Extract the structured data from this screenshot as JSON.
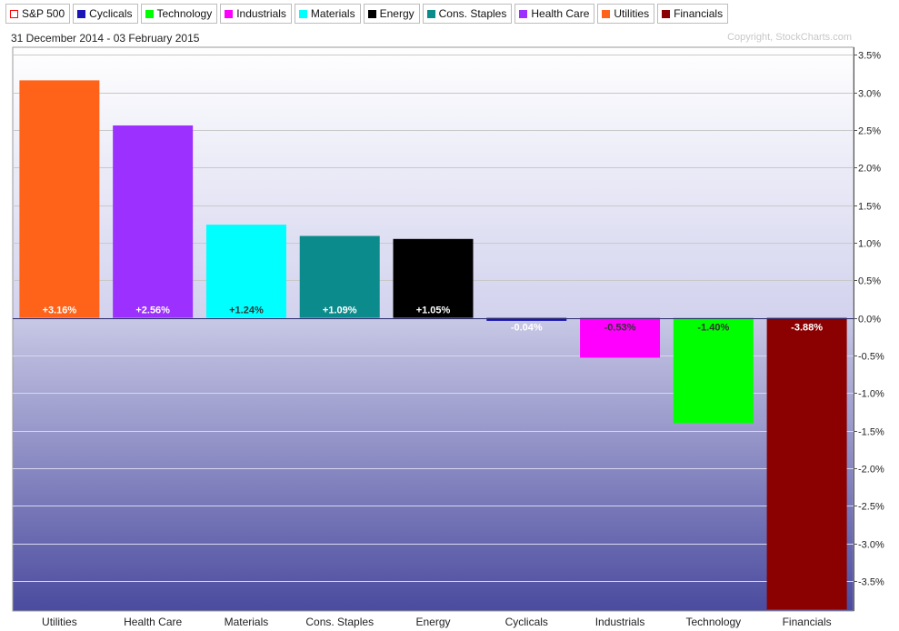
{
  "legend": [
    {
      "label": "S&P 500",
      "color": "#ff0000",
      "hollow": true
    },
    {
      "label": "Cyclicals",
      "color": "#1a16b8"
    },
    {
      "label": "Technology",
      "color": "#00ff00"
    },
    {
      "label": "Industrials",
      "color": "#ff00ff"
    },
    {
      "label": "Materials",
      "color": "#00ffff"
    },
    {
      "label": "Energy",
      "color": "#000000"
    },
    {
      "label": "Cons. Staples",
      "color": "#0b8b8b"
    },
    {
      "label": "Health Care",
      "color": "#9b30ff"
    },
    {
      "label": "Utilities",
      "color": "#ff6319"
    },
    {
      "label": "Financials",
      "color": "#8b0000"
    }
  ],
  "header": {
    "date_range": "31 December 2014 - 03 February 2015",
    "copyright": "Copyright, StockCharts.com"
  },
  "chart_data": {
    "type": "bar",
    "categories": [
      "Utilities",
      "Health Care",
      "Materials",
      "Cons. Staples",
      "Energy",
      "Cyclicals",
      "Industrials",
      "Technology",
      "Financials"
    ],
    "values": [
      3.16,
      2.56,
      1.24,
      1.09,
      1.05,
      -0.04,
      -0.53,
      -1.4,
      -3.88
    ],
    "data_labels": [
      "+3.16%",
      "+2.56%",
      "+1.24%",
      "+1.09%",
      "+1.05%",
      "-0.04%",
      "-0.53%",
      "-1.40%",
      "-3.88%"
    ],
    "colors": [
      "#ff6319",
      "#9b30ff",
      "#00ffff",
      "#0b8b8b",
      "#000000",
      "#1a16b8",
      "#ff00ff",
      "#00ff00",
      "#8b0000"
    ],
    "label_colors": [
      "#ffffff",
      "#ffffff",
      "#333333",
      "#ffffff",
      "#ffffff",
      "#ffffff",
      "#333333",
      "#333333",
      "#ffffff"
    ],
    "y_ticks": [
      3.5,
      3.0,
      2.5,
      2.0,
      1.5,
      1.0,
      0.5,
      0.0,
      -0.5,
      -1.0,
      -1.5,
      -2.0,
      -2.5,
      -3.0,
      -3.5
    ],
    "y_tick_labels": [
      "3.5%",
      "3.0%",
      "2.5%",
      "2.0%",
      "1.5%",
      "1.0%",
      "0.5%",
      "0.0%",
      "-0.5%",
      "-1.0%",
      "-1.5%",
      "-2.0%",
      "-2.5%",
      "-3.0%",
      "-3.5%"
    ],
    "ylim": [
      -3.9,
      3.6
    ],
    "grid": true,
    "y_axis_position": "right"
  }
}
